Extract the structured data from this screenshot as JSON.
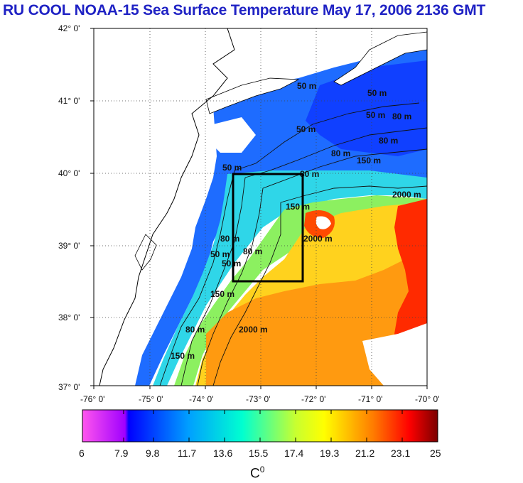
{
  "title": "RU COOL  NOAA-15 Sea Surface Temperature May 17, 2006 2136 GMT",
  "map": {
    "lat_ticks": [
      "42° 0'",
      "41° 0'",
      "40° 0'",
      "39° 0'",
      "38° 0'",
      "37° 0'"
    ],
    "lon_ticks": [
      "-76° 0'",
      "-75° 0'",
      "-74° 0'",
      "-73° 0'",
      "-72° 0'",
      "-71° 0'",
      "-70° 0'"
    ],
    "lat_range": [
      37,
      42
    ],
    "lon_range": [
      -76,
      -70
    ],
    "study_box": {
      "lon": [
        -73.5,
        -72.3
      ],
      "lat": [
        38.5,
        40.0
      ]
    },
    "contour_labels": {
      "c50a": "50 m",
      "c50b": "50 m",
      "c50c": "50 m",
      "c50d": "50 m",
      "c50e": "50 m",
      "c50f": "50 m",
      "c50g": "50 m",
      "c80a": "80 m",
      "c80b": "80 m",
      "c80c": "80 m",
      "c80d": "80 m",
      "c80e": "80 m",
      "c80f": "80 m",
      "c80g": "80 m",
      "c150a": "150 m",
      "c150b": "150 m",
      "c150c": "150 m",
      "c150d": "150 m",
      "c2000a": "2000 m",
      "c2000b": "2000 m",
      "c2000c": "2000 m"
    }
  },
  "colorbar": {
    "ticks": [
      "6",
      "7.9",
      "9.8",
      "11.7",
      "13.6",
      "15.5",
      "17.4",
      "19.3",
      "21.2",
      "23.1",
      "25"
    ],
    "range": [
      6,
      25
    ],
    "colors": [
      "#ff55ee",
      "#0000ff",
      "#00b4ff",
      "#00ffd0",
      "#ffff00",
      "#ff8800",
      "#ff0000",
      "#800000"
    ],
    "unit": "C",
    "unit_sup": "0"
  }
}
